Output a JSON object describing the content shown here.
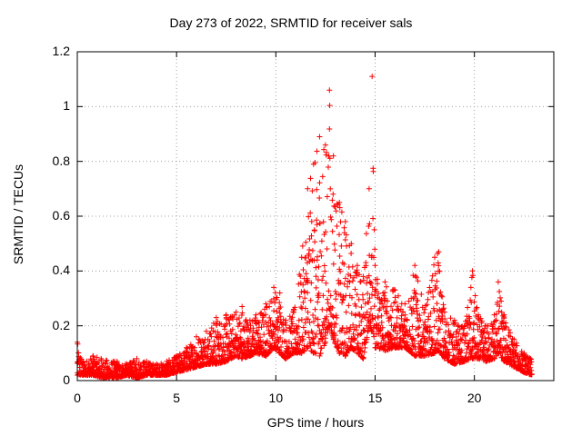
{
  "chart_data": {
    "type": "scatter",
    "title": "Day 273 of 2022, SRMTID for receiver sals",
    "xlabel": "GPS time / hours",
    "ylabel": "SRMTID / TECUs",
    "xlim": [
      0,
      24
    ],
    "ylim": [
      0,
      1.2
    ],
    "x_ticks": [
      "0",
      "5",
      "10",
      "15",
      "20"
    ],
    "y_ticks": [
      "0",
      "0.2",
      "0.4",
      "0.6",
      "0.8",
      "1",
      "1.2"
    ],
    "grid": true,
    "marker": "+",
    "series": [
      {
        "name": "SRMTID",
        "color": "#ff0000",
        "envelope": [
          [
            0.0,
            0.02,
            0.14
          ],
          [
            0.3,
            0.02,
            0.07
          ],
          [
            0.8,
            0.02,
            0.09
          ],
          [
            1.2,
            0.01,
            0.08
          ],
          [
            2.0,
            0.01,
            0.07
          ],
          [
            2.5,
            0.02,
            0.06
          ],
          [
            3.0,
            0.01,
            0.08
          ],
          [
            3.5,
            0.02,
            0.07
          ],
          [
            4.0,
            0.02,
            0.06
          ],
          [
            4.5,
            0.02,
            0.07
          ],
          [
            5.0,
            0.03,
            0.09
          ],
          [
            5.5,
            0.04,
            0.12
          ],
          [
            6.0,
            0.05,
            0.16
          ],
          [
            6.5,
            0.06,
            0.18
          ],
          [
            7.0,
            0.06,
            0.23
          ],
          [
            7.5,
            0.07,
            0.24
          ],
          [
            8.0,
            0.09,
            0.25
          ],
          [
            8.3,
            0.08,
            0.27
          ],
          [
            8.7,
            0.09,
            0.22
          ],
          [
            9.0,
            0.1,
            0.24
          ],
          [
            9.5,
            0.09,
            0.28
          ],
          [
            9.9,
            0.12,
            0.34
          ],
          [
            10.2,
            0.1,
            0.32
          ],
          [
            10.5,
            0.08,
            0.22
          ],
          [
            10.9,
            0.1,
            0.26
          ],
          [
            11.3,
            0.1,
            0.45
          ],
          [
            11.6,
            0.12,
            0.7
          ],
          [
            11.9,
            0.1,
            0.79
          ],
          [
            12.2,
            0.09,
            0.89
          ],
          [
            12.5,
            0.14,
            0.86
          ],
          [
            12.7,
            0.2,
            1.06
          ],
          [
            12.9,
            0.15,
            0.82
          ],
          [
            13.2,
            0.1,
            0.65
          ],
          [
            13.5,
            0.09,
            0.58
          ],
          [
            13.8,
            0.12,
            0.5
          ],
          [
            14.1,
            0.1,
            0.42
          ],
          [
            14.4,
            0.08,
            0.38
          ],
          [
            14.7,
            0.2,
            0.7
          ],
          [
            14.85,
            0.18,
            1.11
          ],
          [
            15.0,
            0.12,
            0.42
          ],
          [
            15.5,
            0.11,
            0.36
          ],
          [
            16.0,
            0.12,
            0.33
          ],
          [
            16.5,
            0.12,
            0.28
          ],
          [
            17.0,
            0.09,
            0.42
          ],
          [
            17.5,
            0.09,
            0.26
          ],
          [
            18.0,
            0.1,
            0.45
          ],
          [
            18.2,
            0.11,
            0.47
          ],
          [
            18.5,
            0.08,
            0.25
          ],
          [
            19.0,
            0.06,
            0.22
          ],
          [
            19.5,
            0.07,
            0.2
          ],
          [
            19.9,
            0.08,
            0.4
          ],
          [
            20.2,
            0.08,
            0.24
          ],
          [
            20.6,
            0.07,
            0.2
          ],
          [
            21.0,
            0.08,
            0.24
          ],
          [
            21.2,
            0.1,
            0.36
          ],
          [
            21.5,
            0.07,
            0.24
          ],
          [
            22.0,
            0.05,
            0.15
          ],
          [
            22.5,
            0.03,
            0.1
          ],
          [
            22.9,
            0.02,
            0.08
          ]
        ]
      }
    ]
  }
}
